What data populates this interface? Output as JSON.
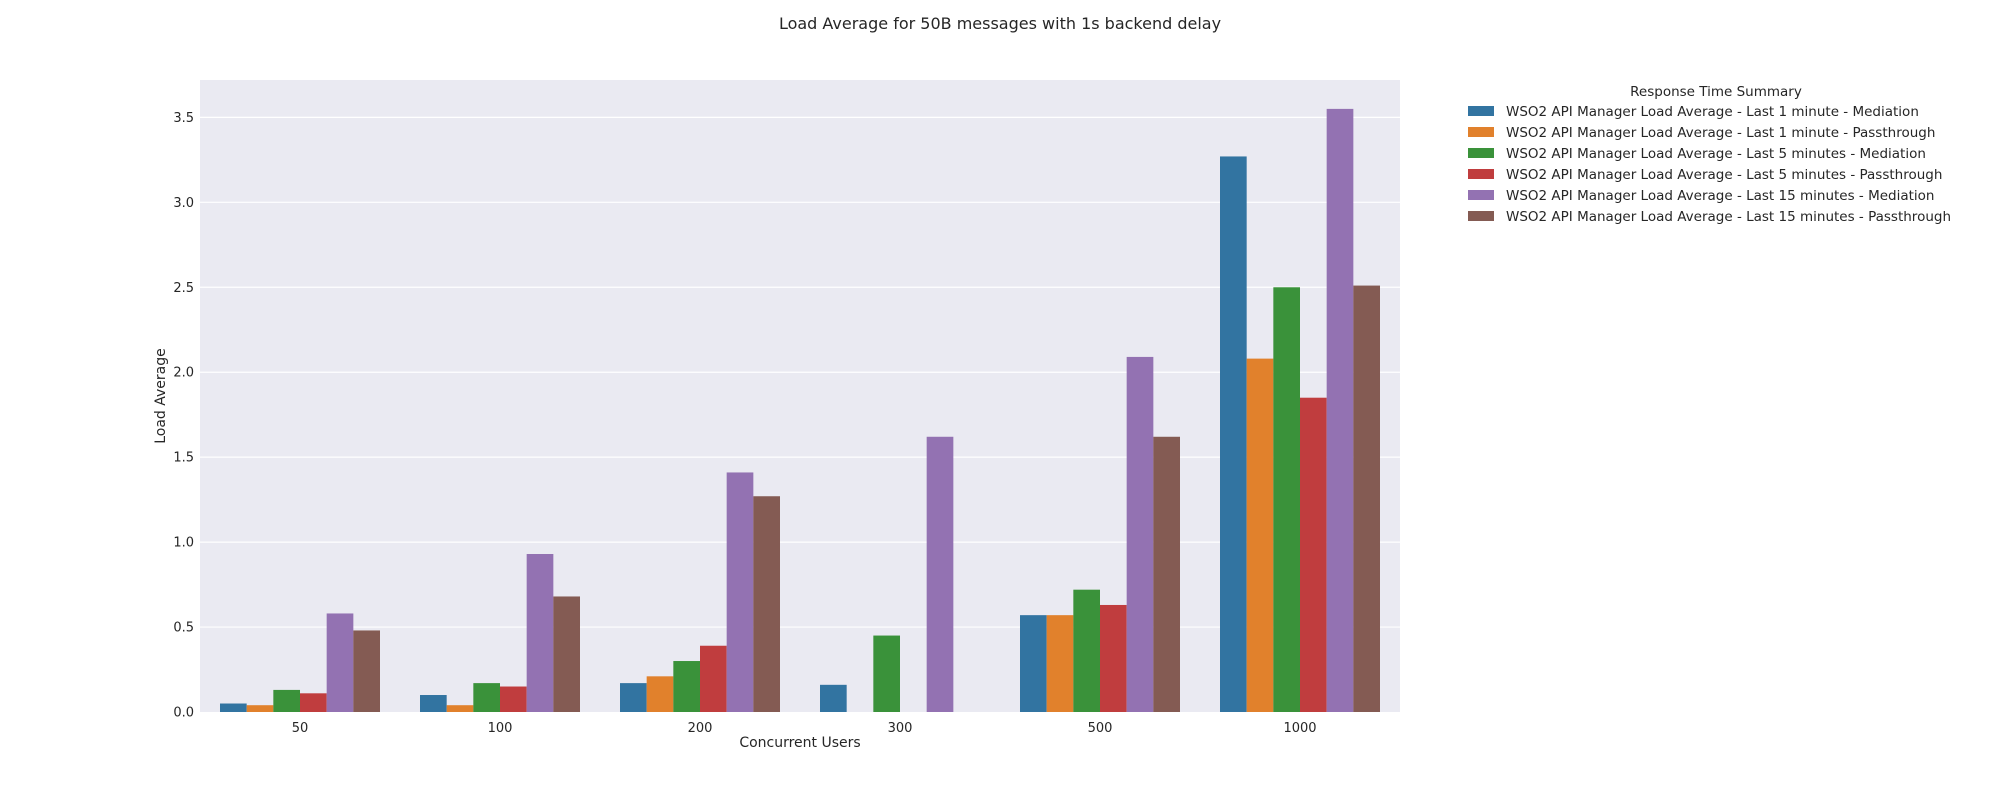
{
  "chart_data": {
    "type": "bar",
    "title": "Load Average for 50B messages with 1s backend delay",
    "xlabel": "Concurrent Users",
    "ylabel": "Load Average",
    "ylim": [
      0,
      3.72
    ],
    "yticks": [
      "0.0",
      "0.5",
      "1.0",
      "1.5",
      "2.0",
      "2.5",
      "3.0",
      "3.5"
    ],
    "grid": true,
    "legend_title": "Response Time Summary",
    "legend_position": "outside-top-right",
    "categories": [
      "50",
      "100",
      "200",
      "300",
      "500",
      "1000"
    ],
    "series": [
      {
        "name": "WSO2 API Manager Load Average - Last 1 minute - Mediation",
        "color": "#3274a1",
        "values": [
          0.05,
          0.1,
          0.17,
          0.16,
          0.57,
          3.27
        ]
      },
      {
        "name": "WSO2 API Manager Load Average - Last 1 minute - Passthrough",
        "color": "#e1812c",
        "values": [
          0.04,
          0.04,
          0.21,
          null,
          0.57,
          2.08
        ]
      },
      {
        "name": "WSO2 API Manager Load Average - Last 5 minutes - Mediation",
        "color": "#3a923a",
        "values": [
          0.13,
          0.17,
          0.3,
          0.45,
          0.72,
          2.5
        ]
      },
      {
        "name": "WSO2 API Manager Load Average - Last 5 minutes - Passthrough",
        "color": "#c03d3e",
        "values": [
          0.11,
          0.15,
          0.39,
          null,
          0.63,
          1.85
        ]
      },
      {
        "name": "WSO2 API Manager Load Average - Last 15 minutes - Mediation",
        "color": "#9372b2",
        "values": [
          0.58,
          0.93,
          1.41,
          1.62,
          2.09,
          3.55
        ]
      },
      {
        "name": "WSO2 API Manager Load Average - Last 15 minutes - Passthrough",
        "color": "#845b53",
        "values": [
          0.48,
          0.68,
          1.27,
          null,
          1.62,
          2.51
        ]
      }
    ]
  }
}
